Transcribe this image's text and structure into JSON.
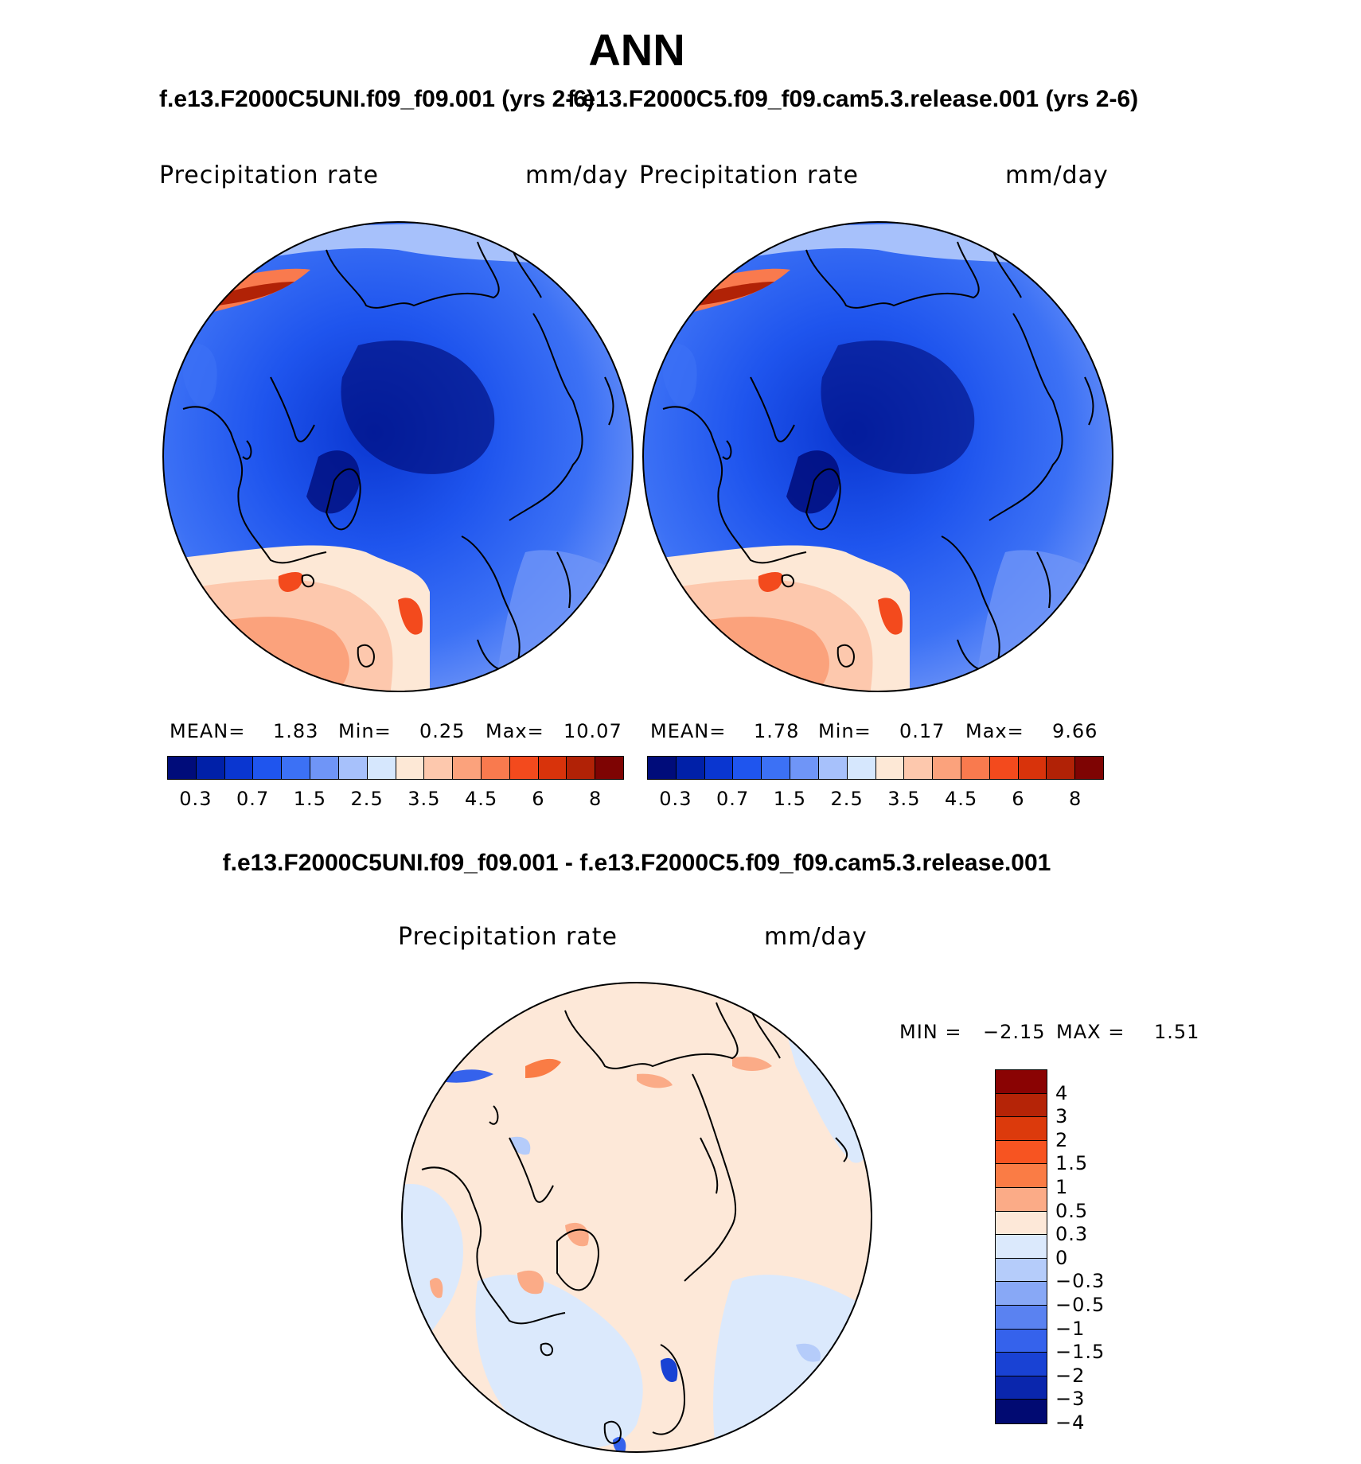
{
  "title": "ANN",
  "panel_left": {
    "case_title": "f.e13.F2000C5UNI.f09_f09.001 (yrs 2-6)",
    "variable": "Precipitation  rate",
    "units": "mm/day",
    "mean_label": "MEAN=",
    "mean": "1.83",
    "min_label": "Min=",
    "min": "0.25",
    "max_label": "Max=",
    "max": "10.07"
  },
  "panel_right": {
    "case_title": "f.e13.F2000C5.f09_f09.cam5.3.release.001 (yrs 2-6)",
    "variable": "Precipitation  rate",
    "units": "mm/day",
    "mean_label": "MEAN=",
    "mean": "1.78",
    "min_label": "Min=",
    "min": "0.17",
    "max_label": "Max=",
    "max": "9.66"
  },
  "panel_diff": {
    "case_title": "f.e13.F2000C5UNI.f09_f09.001 - f.e13.F2000C5.f09_f09.cam5.3.release.001",
    "variable": "Precipitation  rate",
    "units": "mm/day",
    "min_label": "MIN =",
    "min": "−2.15",
    "max_label": "MAX =",
    "max": "1.51"
  },
  "colorbar_abs": {
    "colors": [
      "#000c7a",
      "#0020a8",
      "#0a36d0",
      "#1f55ee",
      "#3c71f5",
      "#6f95f7",
      "#a7c1fb",
      "#d6e7fd",
      "#fde8d6",
      "#fdc8ad",
      "#fba27c",
      "#f97a4e",
      "#f34a1d",
      "#d8330b",
      "#b12206",
      "#7e0403"
    ],
    "ticks": [
      "0.3",
      "0.7",
      "1.5",
      "2.5",
      "3.5",
      "4.5",
      "6",
      "8"
    ]
  },
  "colorbar_diff": {
    "colors": [
      "#8a0303",
      "#b52407",
      "#dc3a0c",
      "#f75421",
      "#fa7c45",
      "#fbab87",
      "#fde8d8",
      "#dbe9fc",
      "#b5ccfa",
      "#88a8f6",
      "#5a82f1",
      "#3562ec",
      "#1942d4",
      "#0a26ad",
      "#010a72"
    ],
    "ticks": [
      "4",
      "3",
      "2",
      "1.5",
      "1",
      "0.5",
      "0.3",
      "0",
      "−0.3",
      "−0.5",
      "−1",
      "−1.5",
      "−2",
      "−3",
      "−4"
    ]
  }
}
